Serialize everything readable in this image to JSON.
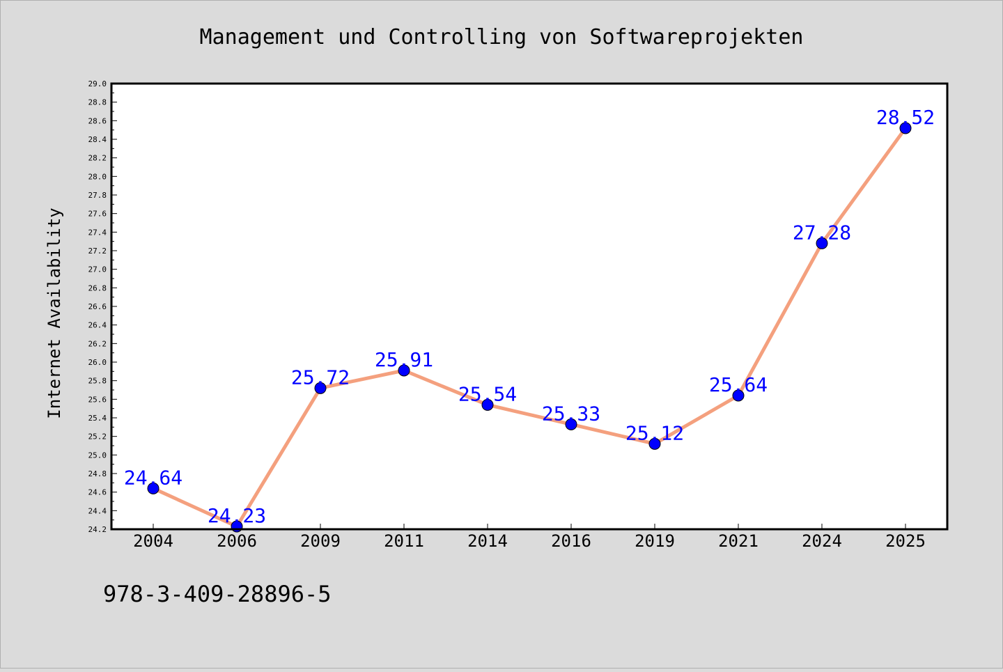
{
  "chart_data": {
    "type": "line",
    "title": "Management und Controlling von Softwareprojekten",
    "xlabel": "",
    "ylabel": "Internet Availability",
    "categories": [
      "2004",
      "2006",
      "2009",
      "2011",
      "2014",
      "2016",
      "2019",
      "2021",
      "2024",
      "2025"
    ],
    "series": [
      {
        "values": [
          24.64,
          24.23,
          25.72,
          25.91,
          25.54,
          25.33,
          25.12,
          25.64,
          27.28,
          28.52
        ],
        "data_labels": [
          "24.64",
          "24.23",
          "25.72",
          "25.91",
          "25.54",
          "25.33",
          "25.12",
          "25.64",
          "27.28",
          "28.52"
        ],
        "line_color": "#f4a07e",
        "marker_color": "#0000ff"
      }
    ],
    "ylim": [
      24.2,
      29.0
    ],
    "yticks": [
      "24.2",
      "24.4",
      "24.6",
      "24.8",
      "25.0",
      "25.2",
      "25.4",
      "25.6",
      "25.8",
      "26.0",
      "26.2",
      "26.4",
      "26.6",
      "26.8",
      "27.0",
      "27.2",
      "27.4",
      "27.6",
      "27.8",
      "28.0",
      "28.2",
      "28.4",
      "28.6",
      "28.8",
      "29.0"
    ],
    "grid": false,
    "legend": "none",
    "background_color": "#dbdbdb",
    "plot_background_color": "#ffffff",
    "label_color": "#0000ff"
  },
  "footer": {
    "isbn": "978-3-409-28896-5"
  }
}
